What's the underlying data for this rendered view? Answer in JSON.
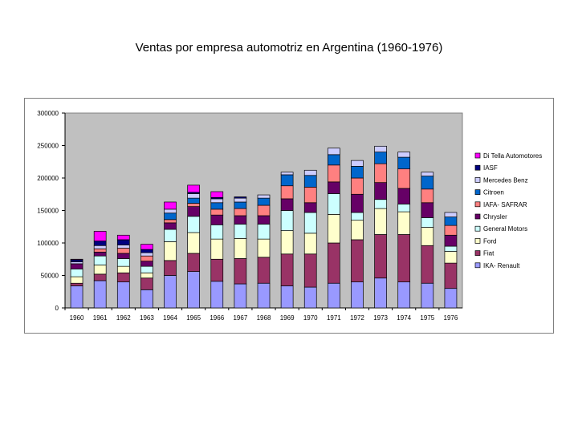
{
  "page": {
    "title": "Ventas por empresa automotriz en Argentina (1960-1976)"
  },
  "chart_data": {
    "type": "bar",
    "stacked": true,
    "title": "Ventas por empresa automotriz en Argentina (1960-1976)",
    "xlabel": "",
    "ylabel": "",
    "ylim": [
      0,
      300000
    ],
    "yticks": [
      0,
      50000,
      100000,
      150000,
      200000,
      250000,
      300000
    ],
    "ytick_labels": [
      "0",
      "50000",
      "100000",
      "150000",
      "200000",
      "250000",
      "300000"
    ],
    "grid": false,
    "plot_background": "#c0c0c0",
    "legend_position": "right",
    "categories": [
      "1960",
      "1961",
      "1962",
      "1963",
      "1964",
      "1965",
      "1966",
      "1967",
      "1968",
      "1969",
      "1970",
      "1971",
      "1972",
      "1973",
      "1974",
      "1975",
      "1976"
    ],
    "series": [
      {
        "name": "IKA- Renault",
        "color": "#9999ff",
        "values": [
          34000,
          42000,
          40000,
          28000,
          50000,
          56000,
          41000,
          37000,
          38000,
          34000,
          32000,
          38000,
          40000,
          46000,
          40000,
          38000,
          30000
        ]
      },
      {
        "name": "Fiat",
        "color": "#993366",
        "values": [
          4000,
          10000,
          14000,
          18000,
          23000,
          28000,
          34000,
          39000,
          40000,
          49000,
          51000,
          62000,
          65000,
          67000,
          73000,
          58000,
          39000
        ]
      },
      {
        "name": "Ford",
        "color": "#ffffcc",
        "values": [
          10000,
          14000,
          10000,
          8000,
          29000,
          32000,
          31000,
          31000,
          28000,
          36000,
          32000,
          44000,
          30000,
          40000,
          35000,
          28000,
          18000
        ]
      },
      {
        "name": "General Motors",
        "color": "#ccffff",
        "values": [
          12000,
          14000,
          12000,
          10000,
          19000,
          25000,
          22000,
          22000,
          23000,
          31000,
          32000,
          32000,
          12000,
          14000,
          12000,
          15000,
          8000
        ]
      },
      {
        "name": "Chrysler",
        "color": "#660066",
        "values": [
          8000,
          6000,
          8000,
          8000,
          10000,
          15000,
          15000,
          13000,
          13000,
          18000,
          15000,
          18000,
          28000,
          26000,
          24000,
          23000,
          17000
        ]
      },
      {
        "name": "IAFA- SAFRAR",
        "color": "#ff8080",
        "values": [
          0,
          5000,
          8000,
          8000,
          5000,
          5000,
          9000,
          11000,
          16000,
          20000,
          24000,
          26000,
          25000,
          29000,
          30000,
          21000,
          15000
        ]
      },
      {
        "name": "Citroen",
        "color": "#0066cc",
        "values": [
          0,
          0,
          0,
          0,
          10000,
          8000,
          10000,
          10000,
          11000,
          17000,
          18000,
          16000,
          18000,
          18000,
          18000,
          20000,
          13000
        ]
      },
      {
        "name": "Mercedes Benz",
        "color": "#ccccff",
        "values": [
          3000,
          5000,
          5000,
          5000,
          6000,
          7000,
          6000,
          6000,
          5000,
          4000,
          8000,
          10000,
          9000,
          9000,
          8000,
          6000,
          7000
        ]
      },
      {
        "name": "IASF",
        "color": "#000080",
        "values": [
          3000,
          7000,
          8000,
          5000,
          0,
          2000,
          2000,
          2000,
          0,
          0,
          0,
          0,
          0,
          0,
          0,
          0,
          0
        ]
      },
      {
        "name": "Di Tella Automotores",
        "color": "#ff00ff",
        "values": [
          1000,
          15000,
          7000,
          8000,
          11000,
          11000,
          9000,
          0,
          0,
          0,
          0,
          0,
          0,
          0,
          0,
          0,
          0
        ]
      }
    ],
    "legend_entries": [
      "Di Tella Automotores",
      "IASF",
      "Mercedes Benz",
      "Citroen",
      "IAFA- SAFRAR",
      "Chrysler",
      "General Motors",
      "Ford",
      "Fiat",
      "IKA- Renault"
    ]
  }
}
